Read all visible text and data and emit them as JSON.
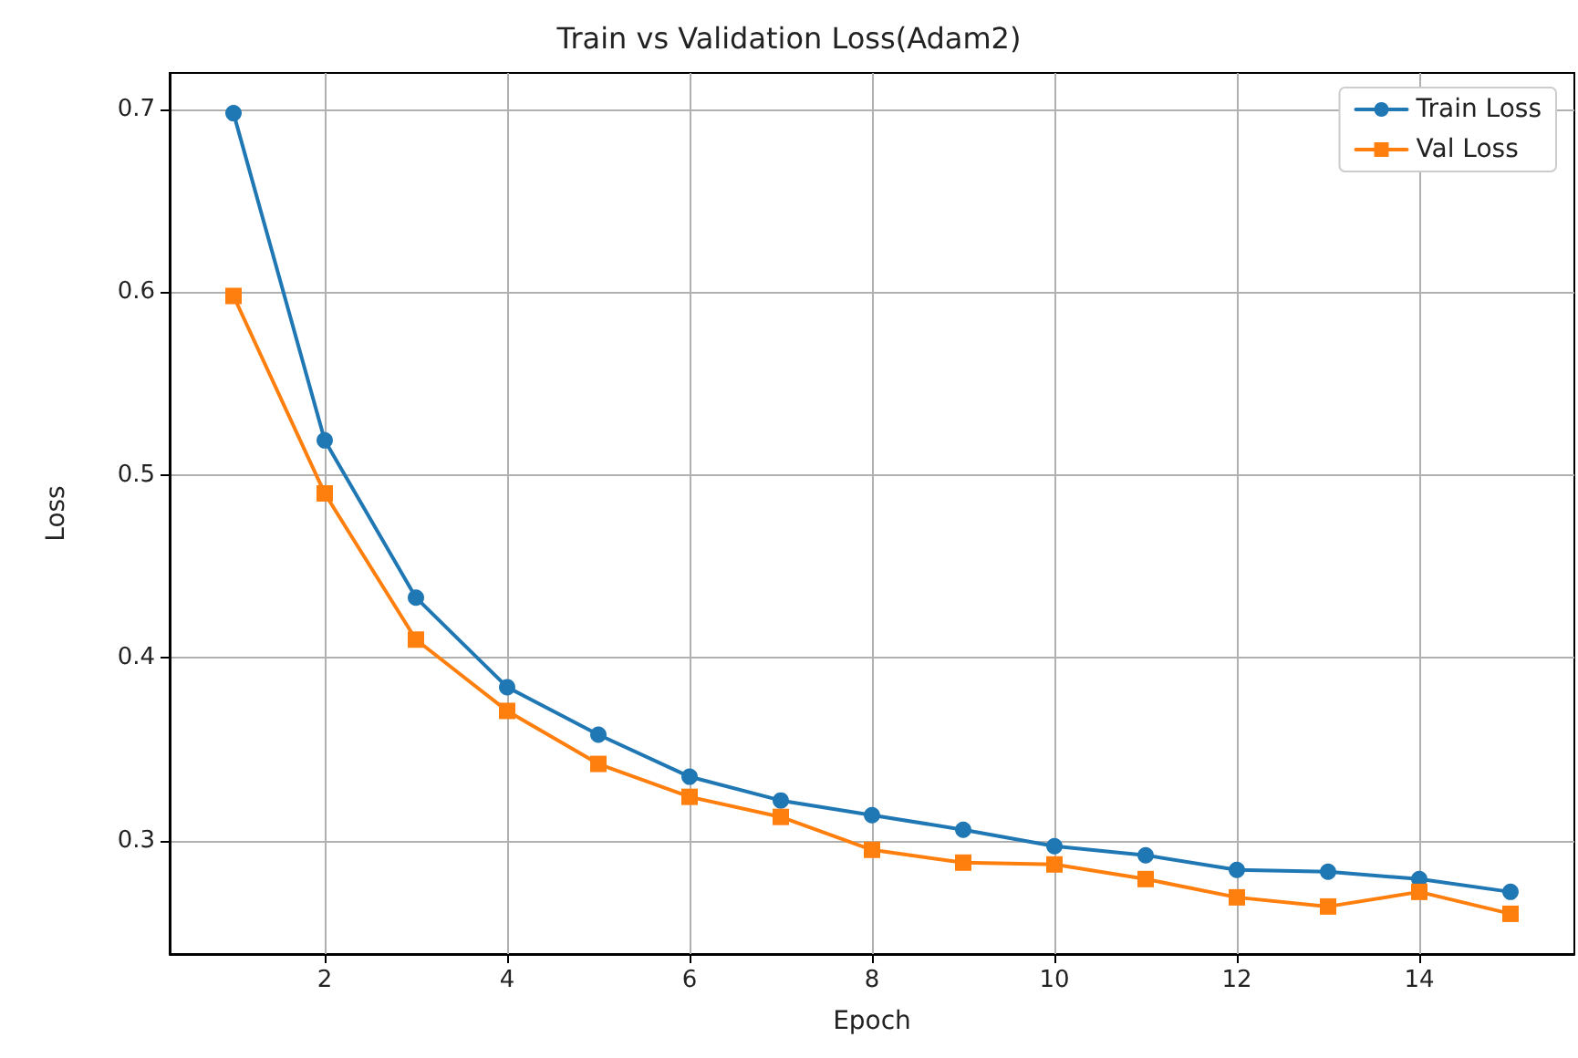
{
  "chart_data": {
    "type": "line",
    "title": "Train vs Validation Loss(Adam2)",
    "xlabel": "Epoch",
    "ylabel": "Loss",
    "x": [
      1,
      2,
      3,
      4,
      5,
      6,
      7,
      8,
      9,
      10,
      11,
      12,
      13,
      14,
      15
    ],
    "series": [
      {
        "name": "Train Loss",
        "color": "#1f77b4",
        "marker": "circle",
        "values": [
          0.698,
          0.519,
          0.433,
          0.384,
          0.358,
          0.335,
          0.322,
          0.314,
          0.306,
          0.297,
          0.292,
          0.284,
          0.283,
          0.279,
          0.272
        ]
      },
      {
        "name": "Val Loss",
        "color": "#ff7f0e",
        "marker": "square",
        "values": [
          0.598,
          0.49,
          0.41,
          0.371,
          0.342,
          0.324,
          0.313,
          0.295,
          0.288,
          0.287,
          0.279,
          0.269,
          0.264,
          0.272,
          0.26
        ]
      }
    ],
    "xlim": [
      0.3,
      15.7
    ],
    "xticks": [
      2,
      4,
      6,
      8,
      10,
      12,
      14
    ],
    "ylim": [
      0.238,
      0.72
    ],
    "yticks": [
      0.3,
      0.4,
      0.5,
      0.6,
      0.7
    ],
    "grid": true,
    "legend": "top right",
    "line_style": "solid"
  }
}
